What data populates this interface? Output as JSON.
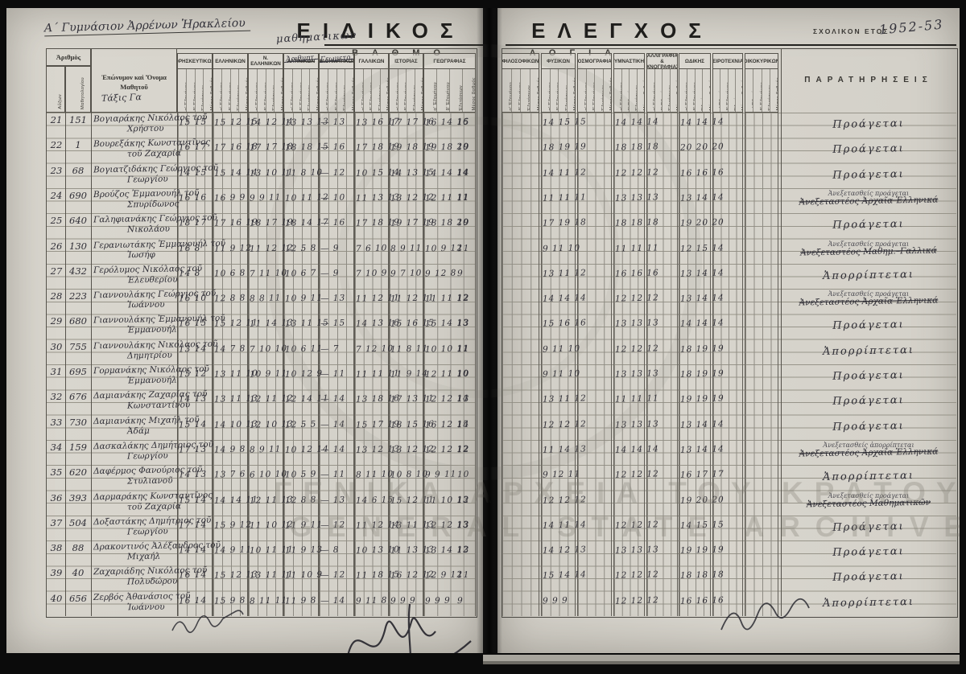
{
  "page_meta": {
    "school_header_hw": "Α΄ Γυμνάσιον Ἀρρένων Ἡρακλείου",
    "title_left": "ΕΙΔΙΚΟΣ",
    "title_right": "ΕΛΕΓΧΟΣ",
    "subtitle_left": "ΒΑΘΜΟ",
    "subtitle_right": "ΛΟΓΙΑ",
    "school_year_label": "ΣΧΟΛΙΚΟΝ ΕΤΟΣ",
    "school_year_hw": "1952-53",
    "class_hw": "Τάξις Γα",
    "math_hw": "μαθηματικών"
  },
  "left_table": {
    "num_header": "Ἀριθμὸς",
    "col_auxon": "Αὔξων",
    "col_mathitologiou": "Μαθητολογίου",
    "name_header_line1": "Ἐπώνυμον καὶ Ὄνομα",
    "name_header_line2": "Μαθητοῦ",
    "subjects": [
      {
        "label": "ΘΡΗΣΚΕΥΤΙΚΩΝ",
        "struck": false,
        "hw": ""
      },
      {
        "label": "ΕΛΛΗΝΙΚΩΝ",
        "struck": false,
        "hw": ""
      },
      {
        "label": "Ν. ΕΛΛΗΝΙΚΩΝ",
        "struck": false,
        "hw": ""
      },
      {
        "label": "ΛΑΤΙΝΙΚΩΝ",
        "struck": true,
        "hw": "Ἀριθμητ."
      },
      {
        "label": "ΜΑΘΗΜΑΤΙΚΩΝ",
        "struck": true,
        "hw": "Γεωμετρ."
      },
      {
        "label": "ΓΑΛΛΙΚΩΝ",
        "struck": false,
        "hw": ""
      },
      {
        "label": "ΙΣΤΟΡΙΑΣ",
        "struck": false,
        "hw": ""
      },
      {
        "label": "ΓΕΩΓΡΑΦΙΑΣ",
        "struck": false,
        "hw": ""
      }
    ],
    "subcols": [
      "α′ Ἑξαμήνου",
      "β′ Ἑξαμήνου",
      "Ἐξετάσεων",
      "Μέσος βαθμός"
    ]
  },
  "right_table": {
    "subjects": [
      "ΦΙΛΟΣΟΦΙΚΩΝ",
      "ΦΥΣΙΚΩΝ",
      "ΚΟΣΜΟΓΡΑΦΙΑΣ",
      "ΓΥΜΝΑΣΤΙΚΗΣ",
      "ΚΑΛΛΙΓΡΑΦΙΑΣ & ΙΧΝΟΓΡΑΦΙΑΣ",
      "ΩΔΙΚΗΣ",
      "ΧΕΙΡΟΤΕΧΝΙΑΣ",
      "ΟΙΚΟΚΥΡΙΚΩΝ"
    ],
    "subcols": [
      "α′ Ἑξαμήνου",
      "β′ Ἑξαμήνου",
      "Ἐξετάσεων",
      "Μέσος βαθμός"
    ],
    "remarks_header": "ΠΑΡΑΤΗΡΗΣΕΙΣ"
  },
  "watermark": {
    "line1": "ΓΕΝΙΚΑ ΑΡΧΕΙΑ ΤΟΥ ΚΡΑΤΟΥΣ",
    "line2": "GENERAL STATE ARCHIVES"
  },
  "rows": [
    {
      "aa": "21",
      "reg": "151",
      "name1": "Βογιαράκης Νικόλαος τοῦ",
      "name2": "Χρήστου",
      "left": [
        "15 15",
        "15 12 15",
        "14 12 14",
        "13 13 13",
        "— 13",
        "13 16 17",
        "17 17 16",
        "16 14 16",
        "15"
      ],
      "right": [
        "14 15  15",
        "14 14  14",
        "14 14  14"
      ],
      "remark": "Προάγεται",
      "note": ""
    },
    {
      "aa": "22",
      "reg": "1",
      "name1": "Βουρεξάκης Κωνσταντῖνος",
      "name2": "τοῦ Ζαχαρία",
      "left": [
        "16 17",
        "17 16 18",
        "17 17 18",
        "18 18 15",
        "— 16",
        "17 18 19",
        "19 18 19",
        "19 18 20",
        "19"
      ],
      "right": [
        "18 19  19",
        "18 18  18",
        "20 20  20"
      ],
      "remark": "Προάγεται",
      "note": ""
    },
    {
      "aa": "23",
      "reg": "68",
      "name1": "Βογιατζιδάκης Γεώργιος τοῦ",
      "name2": "Γεωργίου",
      "left": [
        "14 15",
        "15 14 14",
        "13 10 11",
        "11 8 10",
        "— 12",
        "10 15 14",
        "14 13 15",
        "14 14 14",
        "14"
      ],
      "right": [
        "14 11  12",
        "12 12  12",
        "16 16  16"
      ],
      "remark": "Προάγεται",
      "note": ""
    },
    {
      "aa": "24",
      "reg": "690",
      "name1": "Βρούζος Ἐμμανουήλ τοῦ",
      "name2": "Σπυρίδωνος",
      "left": [
        "16 16",
        "16 9 9",
        "9 9 11",
        "10 11 12",
        "— 10",
        "11 13 13",
        "13 12 12",
        "12 11 11",
        "11"
      ],
      "right": [
        "11 11  11",
        "13 13  13",
        "13 14  14"
      ],
      "remark": "Ἀνεξεταστέος Ἀρχαῖα Ἑλληνικά",
      "note": "Ἀνεξετασθείς προάγεται"
    },
    {
      "aa": "25",
      "reg": "640",
      "name1": "Γαληφιανάκης Γεώργιος τοῦ",
      "name2": "Νικολάου",
      "left": [
        "18 17",
        "17 16 19",
        "18 17 19",
        "18 14 17",
        "— 16",
        "17 18 19",
        "19 17 19",
        "18 18 20",
        "19"
      ],
      "right": [
        "17 19  18",
        "18 18  18",
        "19 20  20"
      ],
      "remark": "Προάγεται",
      "note": ""
    },
    {
      "aa": "26",
      "reg": "130",
      "name1": "Γερανιωτάκης Ἐμμανουήλ τοῦ",
      "name2": "Ἰωσήφ",
      "left": [
        "16 8",
        "11 9 12",
        "11 12 12",
        "12 5 8",
        "— 9",
        "7 6 10",
        "8 9 11",
        "10 9 12",
        "11"
      ],
      "right": [
        "9 11  10",
        "11 11  11",
        "12 15  14"
      ],
      "remark": "Ἀνεξεταστέος Μαθημ.–Γαλλικά",
      "note": "Ἀνεξετασθείς προάγεται"
    },
    {
      "aa": "27",
      "reg": "432",
      "name1": "Γερόλυμος Νικόλαος τοῦ",
      "name2": "Ἐλευθερίου",
      "left": [
        "14 8",
        "10 6 8",
        "7 11 10",
        "10 6 7",
        "— 9",
        "7 10 9",
        "9 7 10",
        "9 12 8",
        "9"
      ],
      "right": [
        "13 11  12",
        "16 16  16",
        "13 14  14"
      ],
      "remark": "Ἀπορρίπτεται",
      "note": ""
    },
    {
      "aa": "28",
      "reg": "223",
      "name1": "Γιαννουλάκης Γεώργιος τοῦ",
      "name2": "Ἰωάννου",
      "left": [
        "16 10",
        "12 8 8",
        "8 8 11",
        "10 9 11",
        "— 13",
        "11 12 11",
        "11 12 11",
        "11 11 12",
        "12"
      ],
      "right": [
        "14 14  14",
        "12 12  12",
        "13 14  14"
      ],
      "remark": "Ἀνεξεταστέος Ἀρχαῖα Ἑλληνικά",
      "note": "Ἀνεξετασθείς προάγεται"
    },
    {
      "aa": "29",
      "reg": "680",
      "name1": "Γιαννουλάκης Ἐμμανουήλ τοῦ",
      "name2": "Ἐμμανουήλ",
      "left": [
        "16 15",
        "15 12 11",
        "11 14 13",
        "13 11 15",
        "— 15",
        "14 13 16",
        "15 16 15",
        "15 14 13",
        "13"
      ],
      "right": [
        "15 16  16",
        "13 13  13",
        "14 14  14"
      ],
      "remark": "Προάγεται",
      "note": ""
    },
    {
      "aa": "30",
      "reg": "755",
      "name1": "Γιαννουλάκης Νικόλαος τοῦ",
      "name2": "Δημητρίου",
      "left": [
        "13 14",
        "14 7 8",
        "7 10 10",
        "10 6 11",
        "— 7",
        "7 12 10",
        "11 8 11",
        "10 10 11",
        "11"
      ],
      "right": [
        "9 11  10",
        "12 12  12",
        "18 19  19"
      ],
      "remark": "Ἀπορρίπτεται",
      "note": ""
    },
    {
      "aa": "31",
      "reg": "695",
      "name1": "Γορμανάκης Νικόλαος τοῦ",
      "name2": "Ἐμμανουήλ",
      "left": [
        "15 12",
        "13 11 10",
        "10 9 11",
        "10 12 9",
        "— 11",
        "11 11 11",
        "11 9 14",
        "12 11 10",
        "10"
      ],
      "right": [
        "9 11  10",
        "13 13  13",
        "18 19  19"
      ],
      "remark": "Προάγεται",
      "note": ""
    },
    {
      "aa": "32",
      "reg": "676",
      "name1": "Δαμιανάκης Ζαχαρίας τοῦ",
      "name2": "Κωνσταντίνου",
      "left": [
        "14 13",
        "13 11 13",
        "12 11 12",
        "12 14 11",
        "— 14",
        "13 18 16",
        "17 13 11",
        "12 12 14",
        "13"
      ],
      "right": [
        "13 11  12",
        "11 11  11",
        "19 19  19"
      ],
      "remark": "Προάγεται",
      "note": ""
    },
    {
      "aa": "33",
      "reg": "730",
      "name1": "Δαμιανάκης Μιχαήλ τοῦ",
      "name2": "Ἀδάμ",
      "left": [
        "15 14",
        "14 10 13",
        "12 10 13",
        "12 5 5",
        "— 14",
        "15 17 19",
        "18 15 16",
        "16 12 15",
        "14"
      ],
      "right": [
        "12 12  12",
        "13 13  13",
        "13 14  14"
      ],
      "remark": "Προάγεται",
      "note": ""
    },
    {
      "aa": "34",
      "reg": "159",
      "name1": "Δασκαλάκης Δημήτριος τοῦ",
      "name2": "Γεωργίου",
      "left": [
        "17 13",
        "14 9 8",
        "8 9 11",
        "10 12 14",
        "— 14",
        "13 12 13",
        "13 12 12",
        "12 12 12",
        "12"
      ],
      "right": [
        "11 14  13",
        "14 14  14",
        "13 14  14"
      ],
      "remark": "Ἀνεξεταστέος Ἀρχαῖα Ἑλληνικά",
      "note": "Ἀνεξετασθείς ἀπορρίπτεται"
    },
    {
      "aa": "35",
      "reg": "620",
      "name1": "Δαφέρμος Φανούριος τοῦ",
      "name2": "Στυλιανοῦ",
      "left": [
        "14 13",
        "13 7 6",
        "6 10 10",
        "10 5 9",
        "— 11",
        "8 11 10",
        "10 8 10",
        "9 9 11",
        "10"
      ],
      "right": [
        "9 12  11",
        "12 12  12",
        "16 17  17"
      ],
      "remark": "Ἀπορρίπτεται",
      "note": ""
    },
    {
      "aa": "36",
      "reg": "393",
      "name1": "Δαρμαράκης Κωνσταντῖνος",
      "name2": "τοῦ Ζαχαρία",
      "left": [
        "15 14",
        "14 14 11",
        "12 11 13",
        "12 8 8",
        "— 13",
        "14 6 15",
        "15 12 11",
        "11 10 13",
        "12"
      ],
      "right": [
        "12 12  12",
        "",
        "19 20  20"
      ],
      "remark": "Ἀνεξεταστέος Μαθηματικῶν",
      "note": "Ἀνεξετασθείς προάγεται"
    },
    {
      "aa": "37",
      "reg": "504",
      "name1": "Δοξαστάκης Δημήτριος τοῦ",
      "name2": "Γεωργίου",
      "left": [
        "17 14",
        "15 9 12",
        "11 10 12",
        "11 9 11",
        "— 12",
        "11 12 14",
        "13 11 13",
        "12 12 13",
        "13"
      ],
      "right": [
        "14 11  14",
        "12 12  12",
        "14 15  15"
      ],
      "remark": "Προάγεται",
      "note": ""
    },
    {
      "aa": "38",
      "reg": "88",
      "name1": "Δρακοντινός Ἀλέξανδρος τοῦ",
      "name2": "Μιχαήλ",
      "left": [
        "14 14",
        "14 9 11",
        "10 11 11",
        "11 9 13",
        "— 8",
        "10 13 10",
        "11 13 13",
        "13 14 12",
        "13"
      ],
      "right": [
        "14 12  13",
        "13 13  13",
        "19 19  19"
      ],
      "remark": "Προάγεται",
      "note": ""
    },
    {
      "aa": "39",
      "reg": "40",
      "name1": "Ζαχαριάδης Νικόλαος τοῦ",
      "name2": "Πολυδώρου",
      "left": [
        "16 14",
        "15 12 13",
        "13 11 11",
        "11 10 9",
        "— 12",
        "11 18 15",
        "16 12 12",
        "12 9 12",
        "11"
      ],
      "right": [
        "15 14  14",
        "12 12  12",
        "18 18  18"
      ],
      "remark": "Προάγεται",
      "note": ""
    },
    {
      "aa": "40",
      "reg": "656",
      "name1": "Ζερβός Ἀθανάσιος τοῦ",
      "name2": "Ἰωάννου",
      "left": [
        "16 14",
        "15 9 8",
        "8 11 11",
        "11 9 8",
        "— 14",
        "9 11 8",
        "9 9 9",
        "9 9 9",
        "9"
      ],
      "right": [
        "9 9  9",
        "12 12  12",
        "16 16  16"
      ],
      "remark": "Ἀπορρίπτεται",
      "note": ""
    }
  ]
}
